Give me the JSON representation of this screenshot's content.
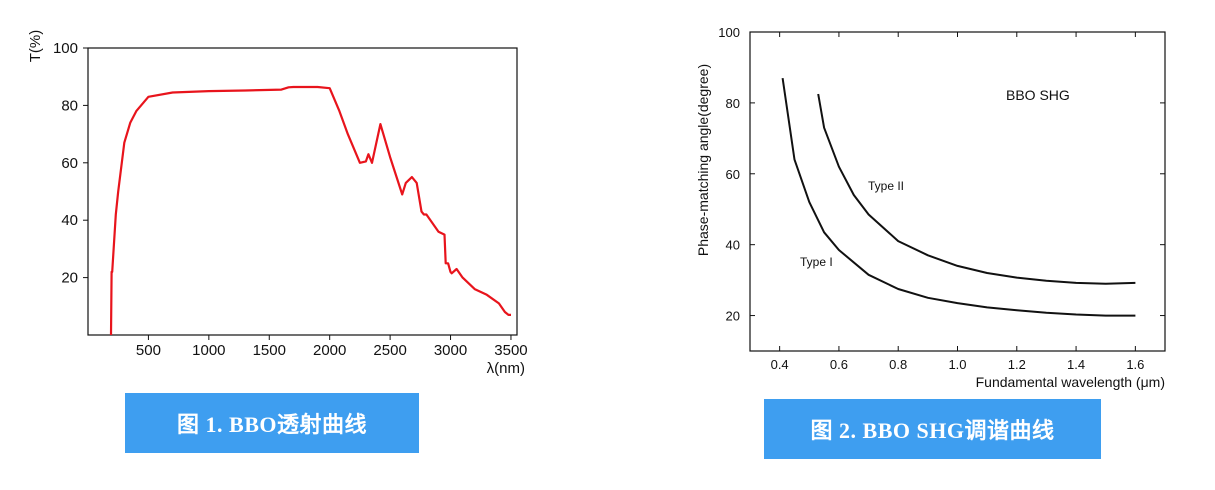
{
  "captions": {
    "fig1": "图 1. BBO透射曲线",
    "fig2": "图 2. BBO SHG调谐曲线"
  },
  "colors": {
    "caption_bg": "#3e9ef0",
    "curve1": "#e8141c",
    "curve2": "#111111"
  },
  "chart_data": [
    {
      "type": "line",
      "title": "",
      "xlabel": "λ(nm)",
      "ylabel": "T(%)",
      "xlim": [
        0,
        3550
      ],
      "ylim": [
        0,
        100
      ],
      "xticks": [
        500,
        1000,
        1500,
        2000,
        2500,
        3000,
        3500
      ],
      "yticks": [
        20,
        40,
        60,
        80,
        100
      ],
      "grid": false,
      "series": [
        {
          "x": [
            190,
            195,
            200,
            230,
            250,
            300,
            350,
            400,
            500,
            700,
            1000,
            1300,
            1600,
            1660,
            1700,
            1900,
            2000,
            2080,
            2150,
            2250,
            2300,
            2320,
            2350,
            2420,
            2500,
            2600,
            2630,
            2680,
            2720,
            2760,
            2780,
            2800,
            2900,
            2950,
            2960,
            2980,
            3000,
            3010,
            3050,
            3100,
            3200,
            3300,
            3400,
            3450,
            3480,
            3500
          ],
          "y": [
            0,
            22,
            22,
            42,
            50,
            67,
            74,
            78,
            83,
            84.5,
            85,
            85.2,
            85.5,
            86.3,
            86.4,
            86.4,
            86,
            78,
            70,
            60,
            60.5,
            63,
            60,
            73.5,
            62,
            49,
            53,
            55,
            53,
            43,
            42,
            42,
            36,
            35,
            25,
            25,
            22,
            21.5,
            23,
            20,
            16,
            14,
            11,
            8,
            7,
            7
          ]
        }
      ]
    },
    {
      "type": "line",
      "title": "BBO SHG",
      "xlabel": "Fundamental wavelength (μm)",
      "ylabel": "Phase-matching angle(degree)",
      "xlim": [
        0.3,
        1.7
      ],
      "ylim": [
        10,
        100
      ],
      "xticks": [
        "0.4",
        "0.6",
        "0.8",
        "1.0",
        "1.2",
        "1.4",
        "1.6"
      ],
      "yticks": [
        "20",
        "40",
        "60",
        "80",
        "100"
      ],
      "grid": false,
      "series": [
        {
          "name": "Type I",
          "x": [
            0.41,
            0.45,
            0.5,
            0.55,
            0.6,
            0.7,
            0.8,
            0.9,
            1.0,
            1.1,
            1.2,
            1.3,
            1.4,
            1.5,
            1.6
          ],
          "y": [
            87,
            64,
            52,
            43.5,
            38.5,
            31.5,
            27.5,
            25,
            23.5,
            22.3,
            21.5,
            20.8,
            20.3,
            20,
            20
          ]
        },
        {
          "name": "Type II",
          "x": [
            0.53,
            0.55,
            0.6,
            0.65,
            0.7,
            0.8,
            0.9,
            1.0,
            1.1,
            1.2,
            1.3,
            1.4,
            1.5,
            1.6
          ],
          "y": [
            82.5,
            73,
            62,
            54,
            48.5,
            41,
            37,
            34,
            32,
            30.7,
            29.8,
            29.2,
            29,
            29.2
          ]
        }
      ]
    }
  ]
}
